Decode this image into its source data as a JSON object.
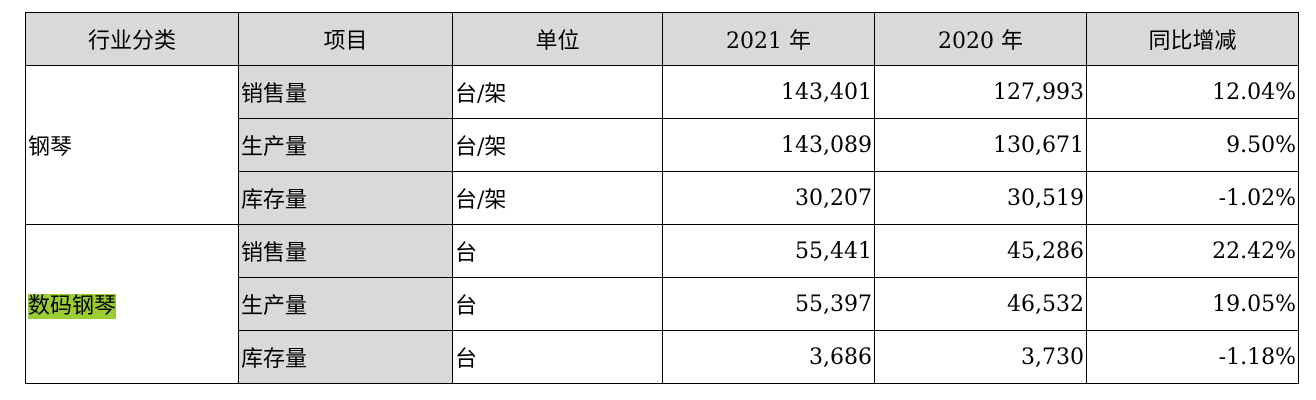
{
  "table": {
    "headers": [
      "行业分类",
      "项目",
      "单位",
      "2021 年",
      "2020 年",
      "同比增减"
    ],
    "groups": [
      {
        "category": "钢琴",
        "highlight": false,
        "rows": [
          {
            "item": "销售量",
            "unit": "台/架",
            "y2021": "143,401",
            "y2020": "127,993",
            "yoy": "12.04%"
          },
          {
            "item": "生产量",
            "unit": "台/架",
            "y2021": "143,089",
            "y2020": "130,671",
            "yoy": "9.50%"
          },
          {
            "item": "库存量",
            "unit": "台/架",
            "y2021": "30,207",
            "y2020": "30,519",
            "yoy": "-1.02%"
          }
        ]
      },
      {
        "category": "数码钢琴",
        "highlight": true,
        "highlight_color": "#9acd32",
        "rows": [
          {
            "item": "销售量",
            "unit": "台",
            "y2021": "55,441",
            "y2020": "45,286",
            "yoy": "22.42%"
          },
          {
            "item": "生产量",
            "unit": "台",
            "y2021": "55,397",
            "y2020": "46,532",
            "yoy": "19.05%"
          },
          {
            "item": "库存量",
            "unit": "台",
            "y2021": "3,686",
            "y2020": "3,730",
            "yoy": "-1.18%"
          }
        ]
      }
    ],
    "colors": {
      "header_bg": "#d9d9d9",
      "item_bg": "#d9d9d9",
      "border": "#000000"
    }
  }
}
